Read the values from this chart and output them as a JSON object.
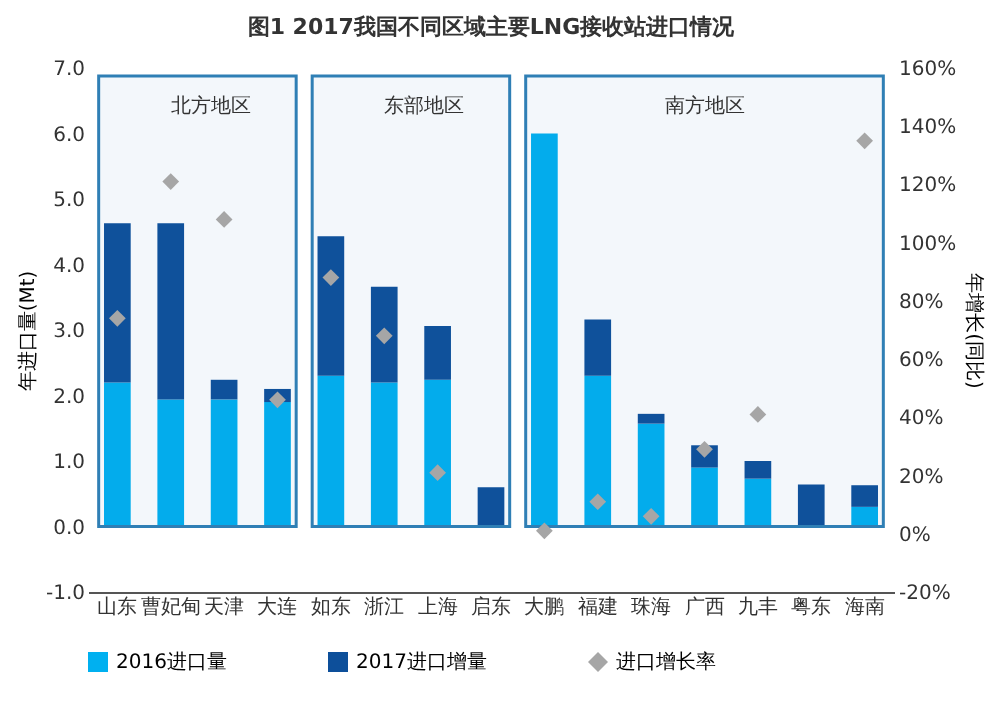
{
  "chart_data": {
    "type": "bar",
    "title": "图1 2017我国不同区域主要LNG接收站进口情况",
    "categories": [
      "山东",
      "曹妃甸",
      "天津",
      "大连",
      "如东",
      "浙江",
      "上海",
      "启东",
      "大鹏",
      "福建",
      "珠海",
      "广西",
      "九丰",
      "粤东",
      "海南"
    ],
    "stacked": true,
    "series": [
      {
        "name": "2016进口量",
        "color": "#00b0f0",
        "values": [
          2.2,
          1.94,
          1.94,
          1.9,
          2.3,
          2.2,
          2.24,
          0,
          6.0,
          2.3,
          1.57,
          0.9,
          0.73,
          0,
          0.3
        ]
      },
      {
        "name": "2017进口增量",
        "color": "#0d4f9a",
        "values": [
          2.43,
          2.69,
          0.3,
          0.2,
          2.13,
          1.46,
          0.82,
          0.6,
          0,
          0.86,
          0.15,
          0.34,
          0.27,
          0.64,
          0.33
        ]
      },
      {
        "name": "进口增长率",
        "type": "scatter",
        "axis": "y2",
        "color": "#a6a6a6",
        "values": [
          74,
          121,
          108,
          46,
          88,
          68,
          21,
          null,
          1,
          11,
          6,
          29,
          41,
          null,
          135
        ]
      }
    ],
    "marker": "diamond",
    "ylabel": "年进口量(Mt)",
    "y2label": "年增长(同比)",
    "ylim": [
      -1,
      7
    ],
    "yticks": [
      {
        "value": -1,
        "label": "-1.0"
      },
      {
        "value": 0,
        "label": "0.0"
      },
      {
        "value": 1,
        "label": "1.0"
      },
      {
        "value": 2,
        "label": "2.0"
      },
      {
        "value": 3,
        "label": "3.0"
      },
      {
        "value": 4,
        "label": "4.0"
      },
      {
        "value": 5,
        "label": "5.0"
      },
      {
        "value": 6,
        "label": "6.0"
      },
      {
        "value": 7,
        "label": "7.0"
      }
    ],
    "y2lim": [
      -20,
      160
    ],
    "y2ticks": [
      {
        "value": -20,
        "label": "-20%"
      },
      {
        "value": 0,
        "label": "0%"
      },
      {
        "value": 20,
        "label": "20%"
      },
      {
        "value": 40,
        "label": "40%"
      },
      {
        "value": 60,
        "label": "60%"
      },
      {
        "value": 80,
        "label": "80%"
      },
      {
        "value": 100,
        "label": "100%"
      },
      {
        "value": 120,
        "label": "120%"
      },
      {
        "value": 140,
        "label": "140%"
      },
      {
        "value": 160,
        "label": "160%"
      }
    ],
    "bands": [
      {
        "axis": "x",
        "from": "山东",
        "to": "大连",
        "label": "北方地区",
        "color": "#2f7fb5"
      },
      {
        "axis": "x",
        "from": "如东",
        "to": "启东",
        "label": "东部地区",
        "color": "#2f7fb5"
      },
      {
        "axis": "x",
        "from": "大鹏",
        "to": "海南",
        "label": "南方地区",
        "color": "#2f7fb5"
      }
    ],
    "legend": "bottom",
    "grid": false
  }
}
